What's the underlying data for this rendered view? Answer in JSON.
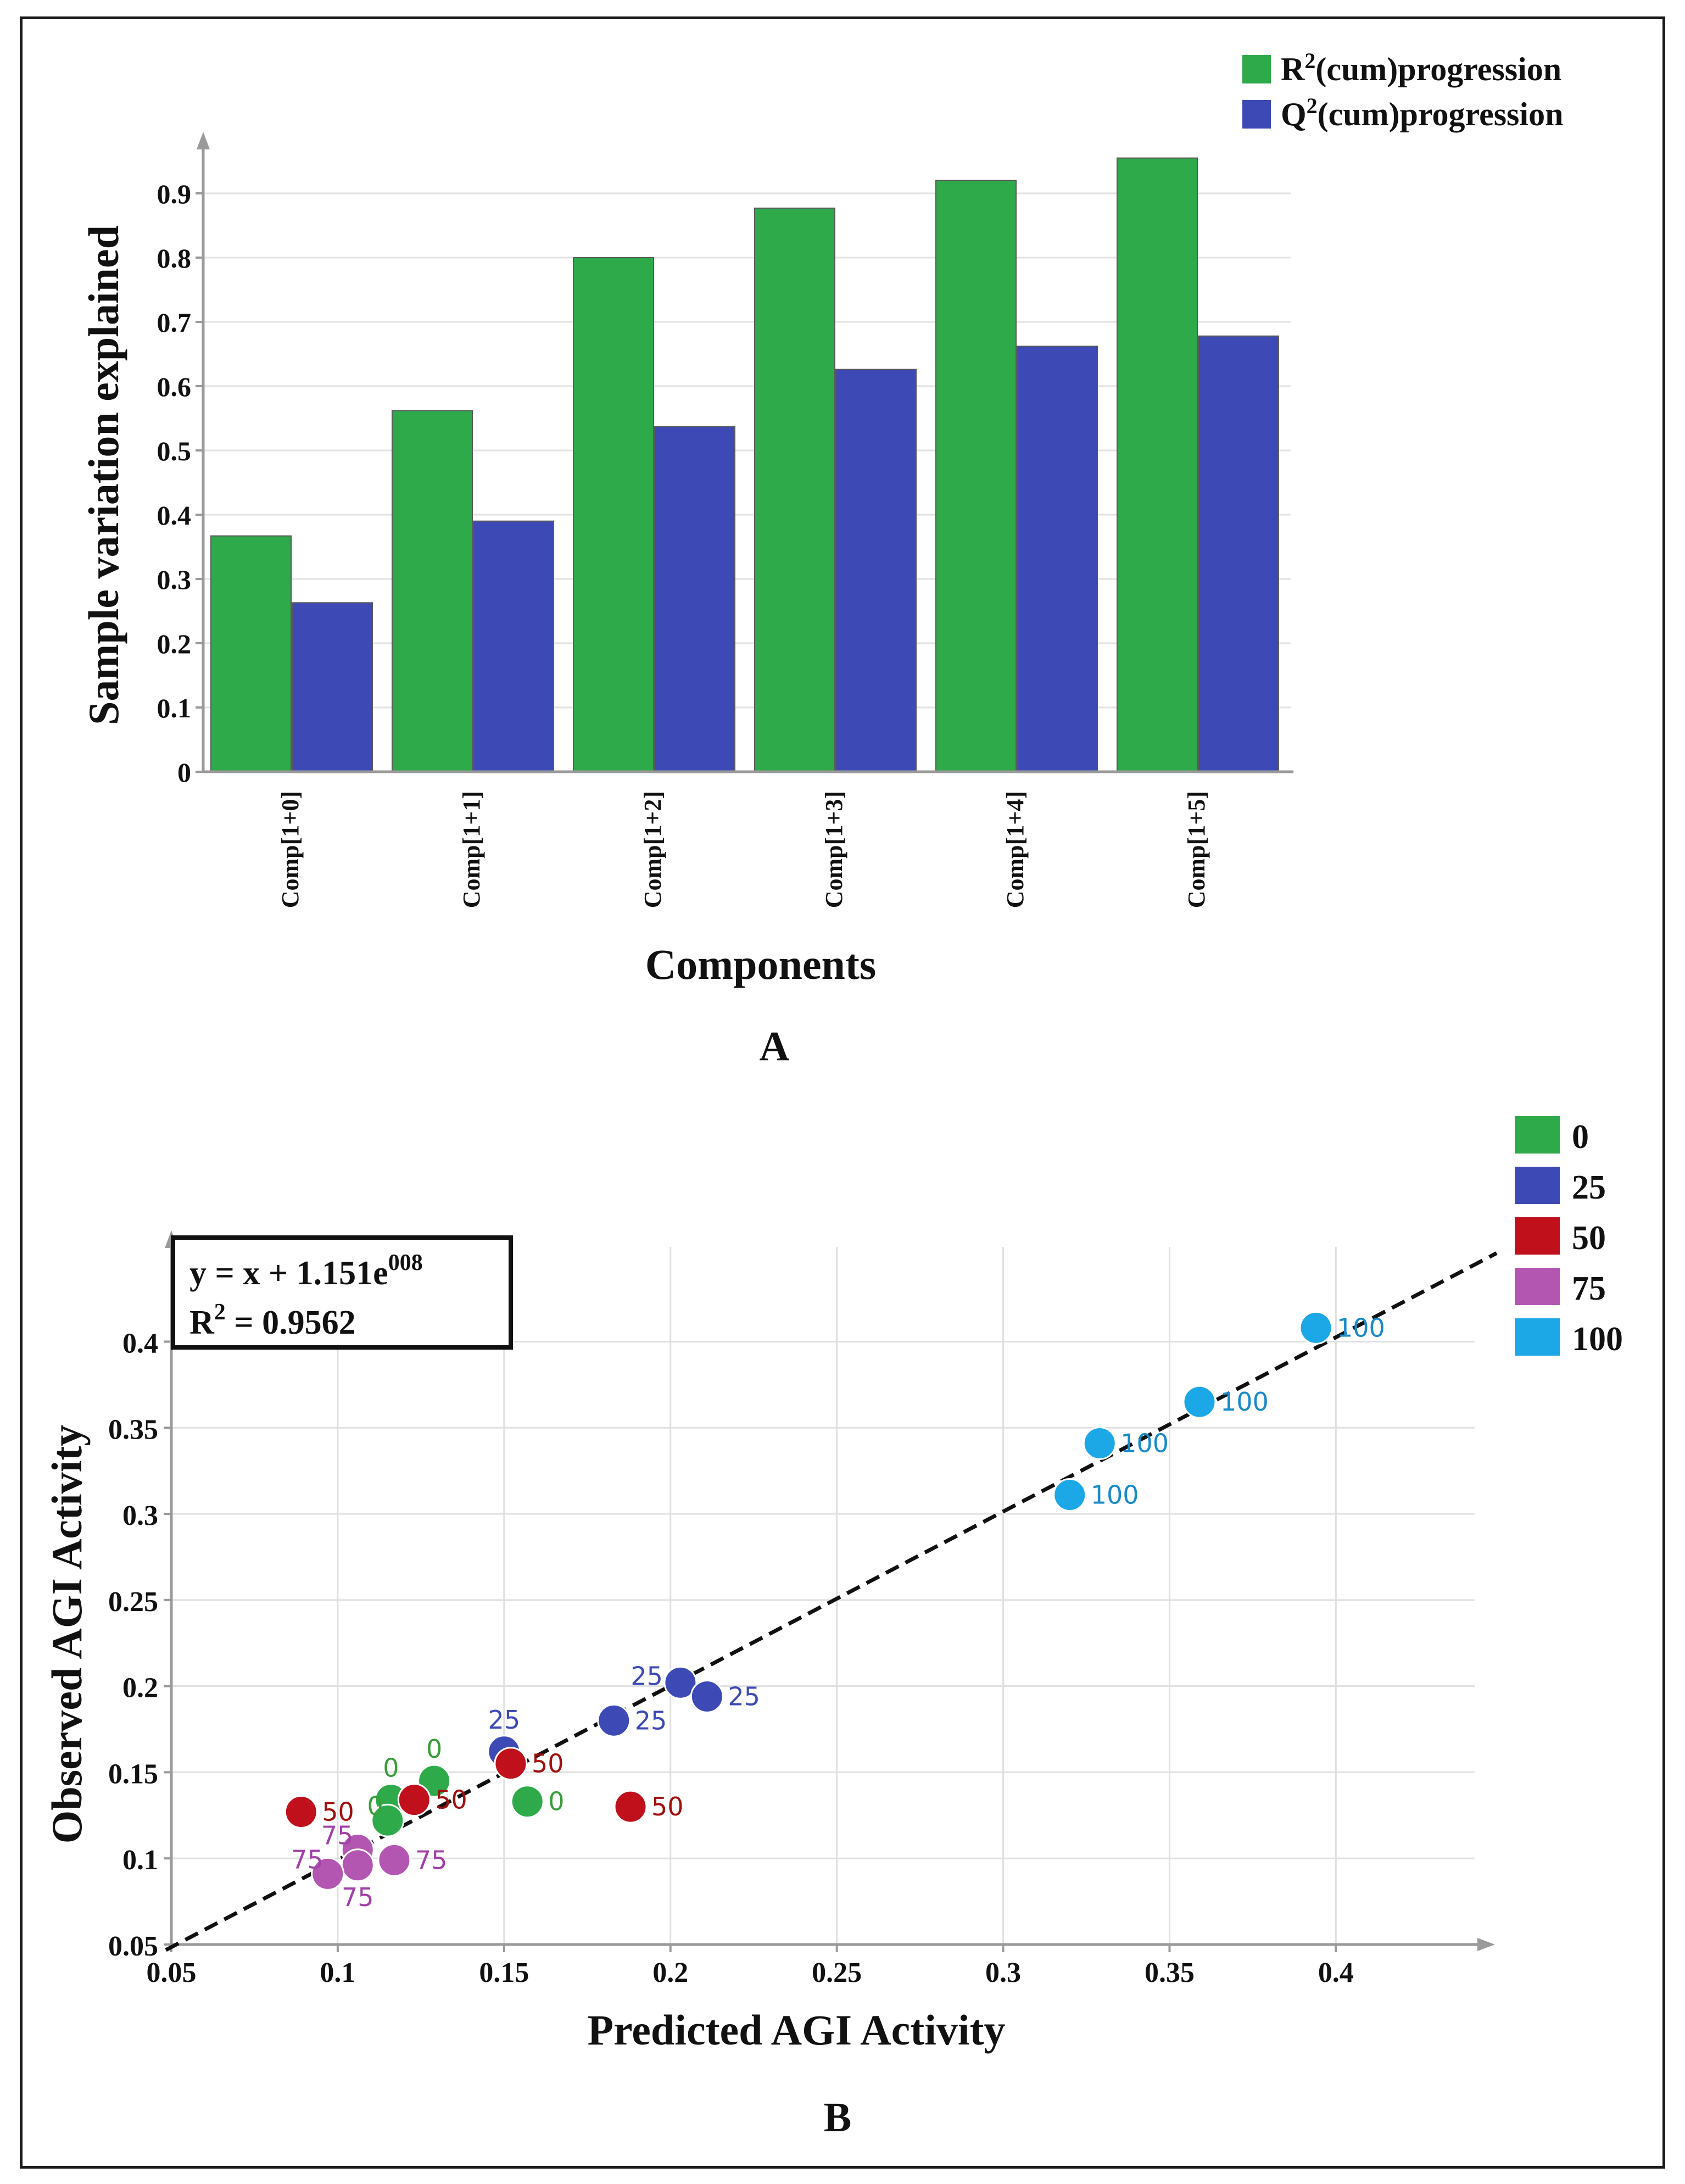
{
  "chart_data": [
    {
      "panel": "A",
      "type": "bar",
      "title": "",
      "xlabel": "Components",
      "ylabel": "Sample variation explained",
      "ylim": [
        0,
        1.0
      ],
      "yticks": [
        "0",
        "0.1",
        "0.2",
        "0.3",
        "0.4",
        "0.5",
        "0.6",
        "0.7",
        "0.8",
        "0.9"
      ],
      "categories": [
        "Comp[1+0]",
        "Comp[1+1]",
        "Comp[1+2]",
        "Comp[1+3]",
        "Comp[1+4]",
        "Comp[1+5]"
      ],
      "series": [
        {
          "name": "R²(cum)progression",
          "legend_main": "R",
          "legend_sup": "2",
          "legend_rest": "(cum)progression",
          "color": "#2eaa4a",
          "values": [
            0.367,
            0.562,
            0.8,
            0.877,
            0.92,
            0.955
          ]
        },
        {
          "name": "Q²(cum)progression",
          "legend_main": "Q",
          "legend_sup": "2",
          "legend_rest": "(cum)progression",
          "color": "#3d4ab5",
          "values": [
            0.263,
            0.39,
            0.537,
            0.626,
            0.662,
            0.678
          ]
        }
      ],
      "grid": true,
      "legend": "top-right"
    },
    {
      "panel": "B",
      "type": "scatter",
      "xlabel": "Predicted AGI Activity",
      "ylabel": "Observed AGI Activity",
      "xlim": [
        0.05,
        0.445
      ],
      "ylim": [
        0.05,
        0.455
      ],
      "xticks": [
        "0.05",
        "0.1",
        "0.15",
        "0.2",
        "0.25",
        "0.3",
        "0.35",
        "0.4"
      ],
      "yticks": [
        "0.05",
        "0.1",
        "0.15",
        "0.2",
        "0.25",
        "0.3",
        "0.35",
        "0.4"
      ],
      "fit_line": {
        "slope": 1,
        "intercept": 0,
        "style": "dashed"
      },
      "equation": {
        "main": "y = x + 1.151e",
        "sup": "008"
      },
      "r2": {
        "r": "R",
        "sup": "2",
        "rest": " = 0.9562"
      },
      "grid": true,
      "legend": "top-right",
      "groups": [
        {
          "name": "0",
          "color": "#2eaa4a",
          "label_color": "#3a9e3a"
        },
        {
          "name": "25",
          "color": "#3d4ab5",
          "label_color": "#3d4ab5"
        },
        {
          "name": "50",
          "color": "#c0101c",
          "label_color": "#a01010"
        },
        {
          "name": "75",
          "color": "#b256b2",
          "label_color": "#a040a8"
        },
        {
          "name": "100",
          "color": "#1ca8e6",
          "label_color": "#1a8ac8"
        }
      ],
      "points": [
        {
          "x": 0.394,
          "y": 0.408,
          "group": "100",
          "label": "100",
          "pos": "right"
        },
        {
          "x": 0.359,
          "y": 0.365,
          "group": "100",
          "label": "100",
          "pos": "right"
        },
        {
          "x": 0.329,
          "y": 0.341,
          "group": "100",
          "label": "100",
          "pos": "right"
        },
        {
          "x": 0.32,
          "y": 0.311,
          "group": "100",
          "label": "100",
          "pos": "right"
        },
        {
          "x": 0.203,
          "y": 0.202,
          "group": "25",
          "label": "25",
          "pos": "left"
        },
        {
          "x": 0.211,
          "y": 0.194,
          "group": "25",
          "label": "25",
          "pos": "right"
        },
        {
          "x": 0.183,
          "y": 0.18,
          "group": "25",
          "label": "25",
          "pos": "right"
        },
        {
          "x": 0.15,
          "y": 0.162,
          "group": "25",
          "label": "25",
          "pos": "above"
        },
        {
          "x": 0.152,
          "y": 0.155,
          "group": "50",
          "label": "50",
          "pos": "right"
        },
        {
          "x": 0.129,
          "y": 0.145,
          "group": "0",
          "label": "0",
          "pos": "above"
        },
        {
          "x": 0.116,
          "y": 0.134,
          "group": "0",
          "label": "0",
          "pos": "above"
        },
        {
          "x": 0.157,
          "y": 0.133,
          "group": "0",
          "label": "0",
          "pos": "right"
        },
        {
          "x": 0.115,
          "y": 0.122,
          "group": "0",
          "label": "0",
          "pos": "upper-left"
        },
        {
          "x": 0.123,
          "y": 0.134,
          "group": "50",
          "label": "50",
          "pos": "right"
        },
        {
          "x": 0.089,
          "y": 0.127,
          "group": "50",
          "label": "50",
          "pos": "right"
        },
        {
          "x": 0.188,
          "y": 0.13,
          "group": "50",
          "label": "50",
          "pos": "right"
        },
        {
          "x": 0.106,
          "y": 0.105,
          "group": "75",
          "label": "75",
          "pos": "upper-left"
        },
        {
          "x": 0.117,
          "y": 0.099,
          "group": "75",
          "label": "75",
          "pos": "right"
        },
        {
          "x": 0.106,
          "y": 0.096,
          "group": "75",
          "label": "75",
          "pos": "below"
        },
        {
          "x": 0.097,
          "y": 0.091,
          "group": "75",
          "label": "75",
          "pos": "upper-left"
        }
      ]
    }
  ],
  "panels": {
    "a_label": "A",
    "b_label": "B"
  }
}
